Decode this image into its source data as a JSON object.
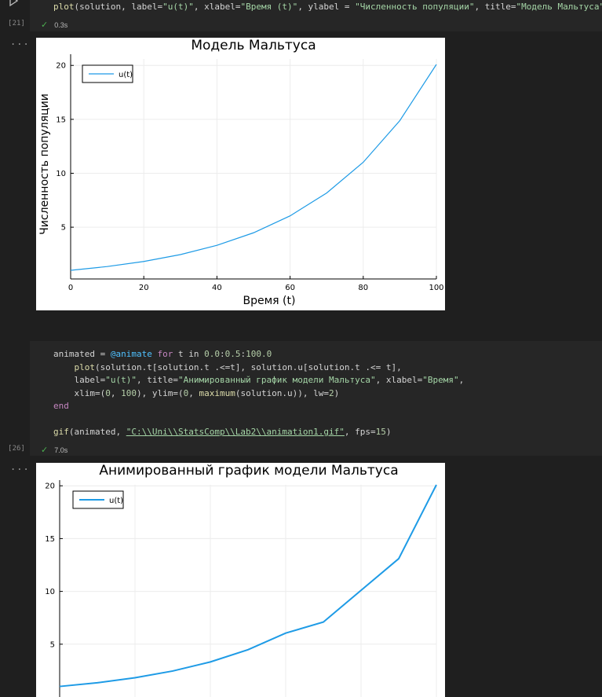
{
  "cell1": {
    "code_line": "plot(solution, label=\"u(t)\", xlabel=\"Время (t)\", ylabel = \"Численность популяции\", title=\"Модель Мальтуса\"",
    "exec_count": "[21]",
    "status_time": "0.3s",
    "output_menu": "..."
  },
  "cell2": {
    "lines": [
      "animated = @animate for t in 0.0:0.5:100.0",
      "    plot(solution.t[solution.t .<=t], solution.u[solution.t .<= t],",
      "    label=\"u(t)\", title=\"Анимированный график модели Мальтуса\", xlabel=\"Время\",",
      "    xlim=(0, 100), ylim=(0, maximum(solution.u)), lw=2)",
      "end",
      "",
      "gif(animated, \"C:\\\\Uni\\\\StatsComp\\\\Lab2\\\\animation1.gif\", fps=15)"
    ],
    "exec_count": "[26]",
    "status_time": "7.0s",
    "output_menu": "..."
  },
  "colors": {
    "series": "#1e9be6",
    "background": "#1f1f1f",
    "cell": "#262626"
  },
  "icons": {
    "run": "play-icon",
    "status": "check-icon"
  },
  "chart_data": [
    {
      "type": "line",
      "title": "Модель Мальтуса",
      "xlabel": "Время (t)",
      "ylabel": "Численность популяции",
      "xlim": [
        0,
        100
      ],
      "ylim": [
        0.2,
        20.6
      ],
      "xticks": [
        0,
        20,
        40,
        60,
        80,
        100
      ],
      "yticks": [
        5,
        10,
        15,
        20
      ],
      "legend": "top-left",
      "grid": true,
      "series": [
        {
          "name": "u(t)",
          "x": [
            0,
            10,
            20,
            30,
            40,
            50,
            60,
            70,
            80,
            90,
            100
          ],
          "y": [
            1.0,
            1.35,
            1.82,
            2.46,
            3.32,
            4.48,
            6.05,
            8.17,
            11.02,
            14.88,
            20.09
          ]
        }
      ]
    },
    {
      "type": "line",
      "title": "Анимированный график модели Мальтуса",
      "xlabel": "",
      "ylabel": "",
      "xlim": [
        0,
        100
      ],
      "ylim": [
        0,
        20.09
      ],
      "yticks": [
        5,
        10,
        15,
        20
      ],
      "legend": "top-left",
      "grid": true,
      "series": [
        {
          "name": "u(t)",
          "x": [
            0,
            10,
            20,
            30,
            40,
            50,
            60,
            70,
            80,
            90,
            100
          ],
          "y": [
            1.0,
            1.35,
            1.82,
            2.46,
            3.32,
            4.48,
            6.05,
            7.1,
            10.1,
            13.1,
            20.09
          ]
        }
      ]
    }
  ]
}
